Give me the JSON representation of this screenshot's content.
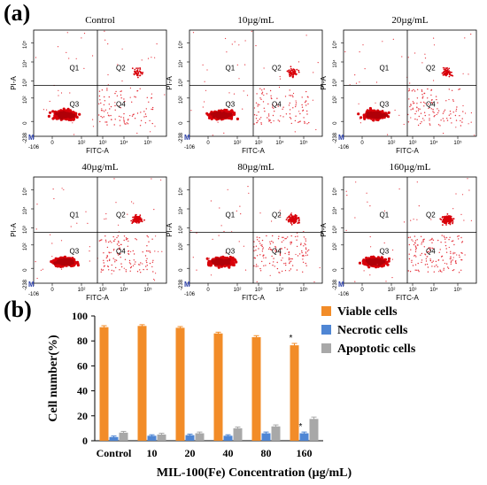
{
  "panel_labels": {
    "a": "(a)",
    "b": "(b)"
  },
  "flow_panels": [
    {
      "title": "Control"
    },
    {
      "title": "10µg/mL"
    },
    {
      "title": "20µg/mL"
    },
    {
      "title": "40µg/mL"
    },
    {
      "title": "80µg/mL"
    },
    {
      "title": "160µg/mL"
    }
  ],
  "flow_axes": {
    "xlabel": "FITC-A",
    "ylabel": "PI-A",
    "quadrants": [
      "Q1",
      "Q2",
      "Q3",
      "Q4"
    ],
    "marker": "M",
    "x_ticks": [
      "-106",
      "0",
      "10²",
      "10³",
      "10⁴",
      "10⁵"
    ],
    "y_ticks": [
      "-238",
      "0",
      "10²",
      "10³",
      "10⁴",
      "10⁵"
    ]
  },
  "chart_data": {
    "type": "bar",
    "categories": [
      "Control",
      "10",
      "20",
      "40",
      "80",
      "160"
    ],
    "series": [
      {
        "name": "Viable cells",
        "color": "#F28C28",
        "values": [
          91,
          92,
          90.5,
          86,
          83,
          76.5
        ],
        "errors": [
          1.2,
          1.0,
          1.0,
          1.0,
          1.2,
          1.5
        ]
      },
      {
        "name": "Necrotic cells",
        "color": "#4F86D4",
        "values": [
          3,
          4,
          4.5,
          4,
          6,
          6
        ],
        "errors": [
          0.8,
          0.8,
          0.8,
          0.8,
          1.0,
          1.0
        ]
      },
      {
        "name": "Apoptotic cells",
        "color": "#A8A8A8",
        "values": [
          6.5,
          5,
          6,
          10,
          11.5,
          17.5
        ],
        "errors": [
          1.0,
          1.0,
          1.0,
          1.0,
          1.2,
          1.5
        ]
      }
    ],
    "significance": [
      {
        "category": "160",
        "series": "Viable cells",
        "mark": "*"
      },
      {
        "category": "160",
        "series": "Necrotic cells",
        "mark": "*"
      }
    ],
    "ylabel": "Cell number(%)",
    "xlabel": "MIL-100(Fe) Concentration (µg/mL)",
    "ylim": [
      0,
      100
    ],
    "yticks": [
      "0",
      "20",
      "40",
      "60",
      "80",
      "100"
    ],
    "legend_position": "top-right"
  }
}
